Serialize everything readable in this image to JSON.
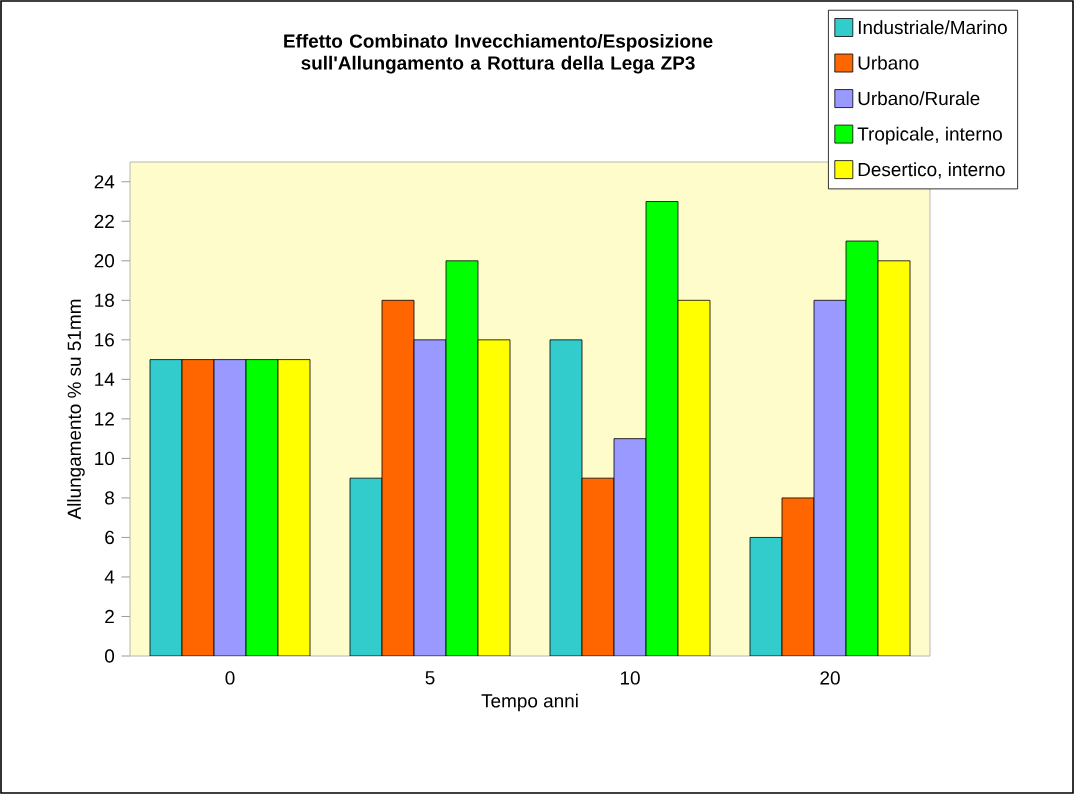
{
  "chart_data": {
    "type": "bar",
    "title": "Effetto Combinato Invecchiamento/Esposizione sull'Allungamento a Rottura della Lega ZP3",
    "xlabel": "Tempo anni",
    "ylabel": "Allungamento % su 51mm",
    "categories": [
      "0",
      "5",
      "10",
      "20"
    ],
    "series": [
      {
        "name": "Industriale/Marino",
        "color": "#33cccc",
        "values": [
          15,
          9,
          16,
          6
        ]
      },
      {
        "name": "Urbano",
        "color": "#ff6600",
        "values": [
          15,
          18,
          9,
          8
        ]
      },
      {
        "name": "Urbano/Rurale",
        "color": "#9999ff",
        "values": [
          15,
          16,
          11,
          18
        ]
      },
      {
        "name": "Tropicale, interno",
        "color": "#00ff00",
        "values": [
          15,
          20,
          23,
          21
        ]
      },
      {
        "name": "Desertico, interno",
        "color": "#ffff00",
        "values": [
          15,
          16,
          18,
          20
        ]
      }
    ],
    "ylim": [
      0,
      25
    ],
    "yticks": [
      0,
      2,
      4,
      6,
      8,
      10,
      12,
      14,
      16,
      18,
      20,
      22,
      24
    ],
    "legend": "top right",
    "grid": false
  }
}
